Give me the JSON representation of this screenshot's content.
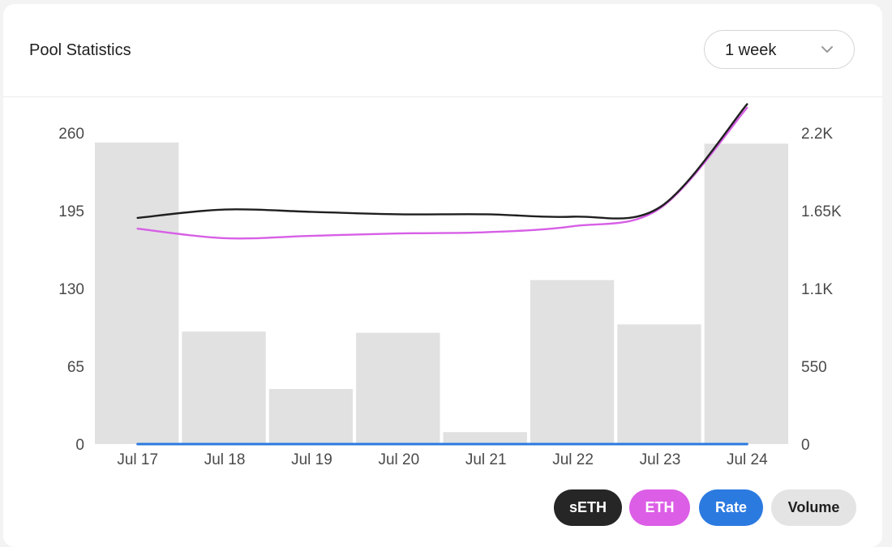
{
  "header": {
    "title": "Pool Statistics",
    "period": "1 week"
  },
  "legend": {
    "items": [
      {
        "label": "sETH",
        "bg": "#262626",
        "fg": "#ffffff"
      },
      {
        "label": "ETH",
        "bg": "#dc5ee6",
        "fg": "#ffffff"
      },
      {
        "label": "Rate",
        "bg": "#2b7ae0",
        "fg": "#ffffff"
      },
      {
        "label": "Volume",
        "bg": "#e4e4e4",
        "fg": "#1f1f1f"
      }
    ]
  },
  "chart_data": {
    "type": "bar",
    "categories": [
      "Jul 17",
      "Jul 18",
      "Jul 19",
      "Jul 20",
      "Jul 21",
      "Jul 22",
      "Jul 23",
      "Jul 24"
    ],
    "left_axis": {
      "ticks": [
        "0",
        "65",
        "130",
        "195",
        "260"
      ],
      "ylim": [
        0,
        260
      ],
      "tick_values": [
        0,
        65,
        130,
        195,
        260
      ]
    },
    "right_axis": {
      "ticks": [
        "0",
        "550",
        "1.1K",
        "1.65K",
        "2.2K"
      ],
      "ylim": [
        0,
        2200
      ],
      "tick_values": [
        0,
        550,
        1100,
        1650,
        2200
      ]
    },
    "bars": {
      "name": "Volume",
      "color": "#e1e1e1",
      "axis": "left",
      "values": [
        252,
        94,
        46,
        93,
        10,
        137,
        100,
        251
      ]
    },
    "series": [
      {
        "name": "sETH",
        "color": "#1f1f1f",
        "axis": "left",
        "type": "line",
        "values": [
          189,
          196,
          194,
          192,
          192,
          190,
          198,
          284
        ]
      },
      {
        "name": "ETH",
        "color": "#d75fe6",
        "axis": "left",
        "type": "line",
        "values": [
          180,
          172,
          174,
          176,
          177,
          182,
          197,
          281
        ]
      },
      {
        "name": "Rate",
        "color": "#2b7ae0",
        "axis": "right",
        "type": "line",
        "values": [
          0,
          0,
          0,
          0,
          0,
          0,
          0,
          0
        ]
      }
    ],
    "grid": false
  }
}
